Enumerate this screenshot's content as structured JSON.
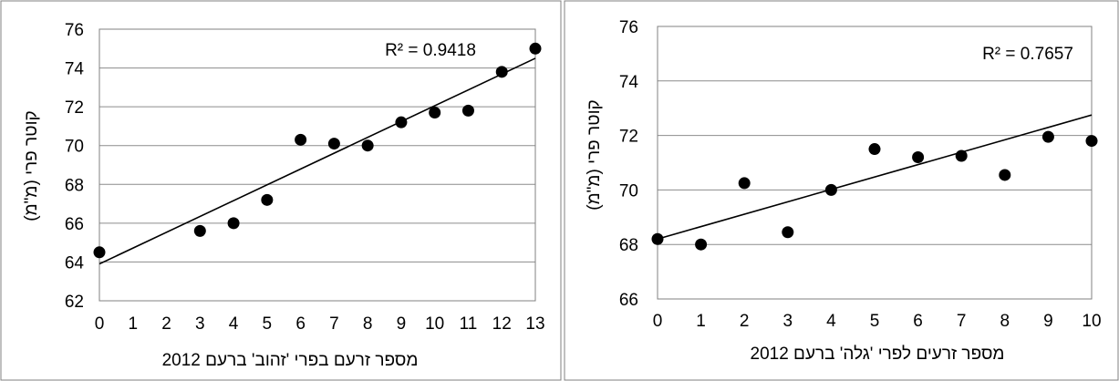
{
  "colors": {
    "grid": "#8c8c8c",
    "border": "#808080",
    "point": "#000000",
    "trend": "#000000"
  },
  "chart_data": [
    {
      "type": "scatter",
      "title": "",
      "xlabel": "מספר זרעם בפרי 'זהוב' ברעם 2012",
      "ylabel": "קוטר פרי (מ\"מ)",
      "xlim": [
        0,
        13
      ],
      "ylim": [
        62,
        76
      ],
      "xticks": [
        "0",
        "1",
        "2",
        "3",
        "4",
        "5",
        "6",
        "7",
        "8",
        "9",
        "10",
        "11",
        "12",
        "13"
      ],
      "yticks": [
        "62",
        "64",
        "66",
        "68",
        "70",
        "72",
        "74",
        "76"
      ],
      "grid": true,
      "points": [
        {
          "x": 0,
          "y": 64.5
        },
        {
          "x": 3,
          "y": 65.6
        },
        {
          "x": 4,
          "y": 66.0
        },
        {
          "x": 5,
          "y": 67.2
        },
        {
          "x": 6,
          "y": 70.3
        },
        {
          "x": 7,
          "y": 70.1
        },
        {
          "x": 8,
          "y": 70.0
        },
        {
          "x": 9,
          "y": 71.2
        },
        {
          "x": 10,
          "y": 71.7
        },
        {
          "x": 11,
          "y": 71.8
        },
        {
          "x": 12,
          "y": 73.8
        },
        {
          "x": 13,
          "y": 75.0
        }
      ],
      "trendline": {
        "x1": 0,
        "y1": 63.9,
        "x2": 13,
        "y2": 74.5
      },
      "annotation": "R² = 0.9418"
    },
    {
      "type": "scatter",
      "title": "",
      "xlabel": "מספר זרעים לפרי  'גלה' ברעם 2012",
      "ylabel": "קוטר פרי (מ\"מ)",
      "xlim": [
        0,
        10
      ],
      "ylim": [
        66,
        76
      ],
      "xticks": [
        "0",
        "1",
        "2",
        "3",
        "4",
        "5",
        "6",
        "7",
        "8",
        "9",
        "10"
      ],
      "yticks": [
        "66",
        "68",
        "70",
        "72",
        "74",
        "76"
      ],
      "grid": true,
      "points": [
        {
          "x": 0,
          "y": 68.2
        },
        {
          "x": 1,
          "y": 68.0
        },
        {
          "x": 2,
          "y": 70.25
        },
        {
          "x": 3,
          "y": 68.45
        },
        {
          "x": 4,
          "y": 70.0
        },
        {
          "x": 5,
          "y": 71.5
        },
        {
          "x": 6,
          "y": 71.2
        },
        {
          "x": 7,
          "y": 71.25
        },
        {
          "x": 8,
          "y": 70.55
        },
        {
          "x": 9,
          "y": 71.95
        },
        {
          "x": 10,
          "y": 71.8
        }
      ],
      "trendline": {
        "x1": 0,
        "y1": 68.2,
        "x2": 10,
        "y2": 72.75
      },
      "annotation": "R² = 0.7657"
    }
  ]
}
